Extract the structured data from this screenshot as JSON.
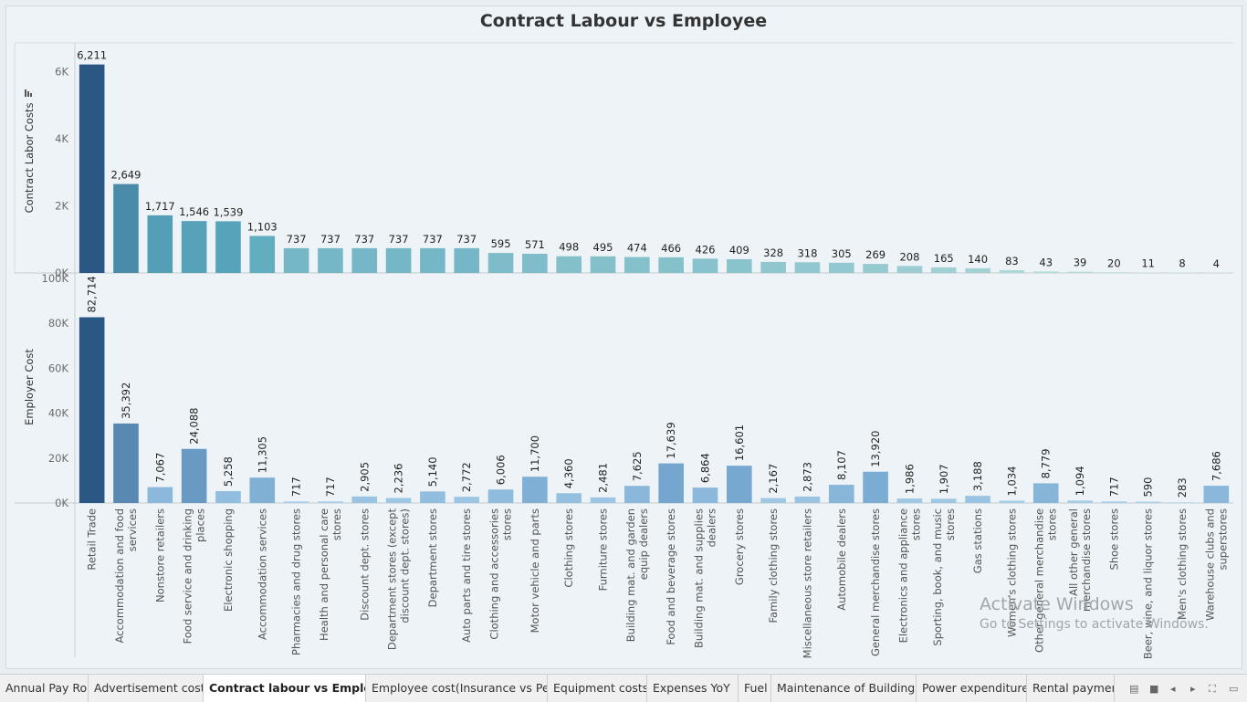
{
  "title": "Contract Labour vs Employee",
  "chart_data": [
    {
      "type": "bar",
      "ylabel": "Contract Labor Costs",
      "ylim": [
        0,
        6500
      ],
      "yticks": [
        0,
        2000,
        4000,
        6000
      ],
      "ytick_labels": [
        "0K",
        "2K",
        "4K",
        "6K"
      ],
      "values": [
        6211,
        2649,
        1717,
        1546,
        1539,
        1103,
        737,
        737,
        737,
        737,
        737,
        737,
        595,
        571,
        498,
        495,
        474,
        466,
        426,
        409,
        328,
        318,
        305,
        269,
        208,
        165,
        140,
        83,
        43,
        39,
        20,
        11,
        8,
        4
      ],
      "labels": [
        "6,211",
        "2,649",
        "1,717",
        "1,546",
        "1,539",
        "1,103",
        "737",
        "737",
        "737",
        "737",
        "737",
        "737",
        "595",
        "571",
        "498",
        "495",
        "474",
        "466",
        "426",
        "409",
        "328",
        "318",
        "305",
        "269",
        "208",
        "165",
        "140",
        "83",
        "43",
        "39",
        "20",
        "11",
        "8",
        "4"
      ],
      "color_scale": [
        "#2a5783",
        "#5aa8bd",
        "#cdeae2"
      ]
    },
    {
      "type": "bar",
      "ylabel": "Employer Cost",
      "ylim": [
        0,
        100000
      ],
      "yticks": [
        0,
        20000,
        40000,
        60000,
        80000,
        100000
      ],
      "ytick_labels": [
        "0K",
        "20K",
        "40K",
        "60K",
        "80K",
        "100K"
      ],
      "values": [
        82714,
        35392,
        7067,
        24088,
        5258,
        11305,
        717,
        717,
        2905,
        2236,
        5140,
        2772,
        6006,
        11700,
        4360,
        2481,
        7625,
        17639,
        6864,
        16601,
        2167,
        2873,
        8107,
        13920,
        1986,
        1907,
        3188,
        1034,
        8779,
        1094,
        717,
        590,
        283,
        7686
      ],
      "labels": [
        "82,714",
        "35,392",
        "7,067",
        "24,088",
        "5,258",
        "11,305",
        "717",
        "717",
        "2,905",
        "2,236",
        "5,140",
        "2,772",
        "6,006",
        "11,700",
        "4,360",
        "2,481",
        "7,625",
        "17,639",
        "6,864",
        "16,601",
        "2,167",
        "2,873",
        "8,107",
        "13,920",
        "1,986",
        "1,907",
        "3,188",
        "1,034",
        "8,779",
        "1,094",
        "717",
        "590",
        "283",
        "7,686"
      ],
      "color_scale": [
        "#2a5783",
        "#74a6cf",
        "#b9dcf2"
      ]
    }
  ],
  "categories": [
    "Retail Trade",
    "Accommodation and food services",
    "Nonstore retailers",
    "Food service and drinking places",
    "Electronic shopping",
    "Accommodation services",
    "Pharmacies and drug stores",
    "Health and personal care stores",
    "Discount dept. stores",
    "Department stores (except discount dept. stores)",
    "Department stores",
    "Auto parts and tire stores",
    "Clothing and accessories stores",
    "Motor vehicle and parts",
    "Clothing stores",
    "Furniture stores",
    "Building mat. and garden equip dealers",
    "Food and beverage stores",
    "Building mat. and supplies dealers",
    "Grocery stores",
    "Family clothing stores",
    "Miscellaneous store retailers",
    "Automobile dealers",
    "General merchandise stores",
    "Electronics and appliance stores",
    "Sporting, book, and music stores",
    "Gas stations",
    "Women's clothing stores",
    "Other general merchandise stores",
    "All other general merchandise stores",
    "Shoe stores",
    "Beer, wine, and liquor stores",
    "Men's clothing stores",
    "Warehouse clubs and superstores"
  ],
  "category_lines": [
    [
      "Retail Trade"
    ],
    [
      "Accommodation and food",
      "services"
    ],
    [
      "Nonstore retailers"
    ],
    [
      "Food service and drinking",
      "places"
    ],
    [
      "Electronic shopping"
    ],
    [
      "Accommodation services"
    ],
    [
      "Pharmacies and drug stores"
    ],
    [
      "Health and personal care",
      "stores"
    ],
    [
      "Discount dept. stores"
    ],
    [
      "Department stores (except",
      "discount dept. stores)"
    ],
    [
      "Department stores"
    ],
    [
      "Auto parts and tire stores"
    ],
    [
      "Clothing and accessories",
      "stores"
    ],
    [
      "Motor vehicle and parts"
    ],
    [
      "Clothing stores"
    ],
    [
      "Furniture stores"
    ],
    [
      "Building mat. and garden",
      "equip dealers"
    ],
    [
      "Food and beverage stores"
    ],
    [
      "Building mat. and supplies",
      "dealers"
    ],
    [
      "Grocery stores"
    ],
    [
      "Family clothing stores"
    ],
    [
      "Miscellaneous store retailers"
    ],
    [
      "Automobile dealers"
    ],
    [
      "General merchandise stores"
    ],
    [
      "Electronics and appliance",
      "stores"
    ],
    [
      "Sporting, book, and music",
      "stores"
    ],
    [
      "Gas stations"
    ],
    [
      "Women's clothing stores"
    ],
    [
      "Other general merchandise",
      "stores"
    ],
    [
      "All other general",
      "merchandise stores"
    ],
    [
      "Shoe stores"
    ],
    [
      "Beer, wine, and liquor stores"
    ],
    [
      "Men's clothing stores"
    ],
    [
      "Warehouse clubs and",
      "superstores"
    ]
  ],
  "tabs": [
    {
      "label": "Annual Pay Roll",
      "active": false
    },
    {
      "label": "Advertisement cost",
      "active": false
    },
    {
      "label": "Contract labour vs Employee",
      "active": true
    },
    {
      "label": "Employee cost(Insurance vs Pe...",
      "active": false
    },
    {
      "label": "Equipment costs",
      "active": false
    },
    {
      "label": "Expenses YoY",
      "active": false
    },
    {
      "label": "Fuel",
      "active": false
    },
    {
      "label": "Maintenance of Buildings",
      "active": false
    },
    {
      "label": "Power expenditure",
      "active": false
    },
    {
      "label": "Rental payment •",
      "active": false
    }
  ],
  "watermark": {
    "line1": "Activate Windows",
    "line2": "Go to Settings to activate Windows."
  },
  "nav_icons": [
    "sheet-list-icon",
    "filmstrip-icon",
    "prev-sheet-icon",
    "next-sheet-icon",
    "fullscreen-icon",
    "presentation-icon"
  ]
}
